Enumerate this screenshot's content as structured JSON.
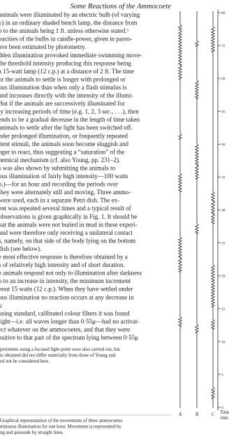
{
  "header": {
    "title": "Some Reactions of the Ammocoete"
  },
  "body": [
    "animals were illuminated by an electric bulb (of varying",
    "v) in an ordinary shaded bench lamp, the distance from",
    "b to the animals being 1 ft. unless otherwise stated.¹",
    "pacities of the bulbs in candle-power, given in paren-",
    "ave been estimated by photometry.",
    "dden illumination provoked immediate swimming move-",
    "the threshold intensity producing this response being",
    "a 15-watt lamp (12 c.p.) at a distance of 2 ft. The time",
    "or the animals to settle is longer with prolonged or",
    "ous illumination than when only a flash stimulus is",
    "and increases directly with the intensity of the illumi-",
    "But if the animals are successively illuminated for",
    "ly increasing periods of time (e.g. 1, 2, 3 sec., . . .), then",
    "ends to be a gradual decrease in the length of time taken",
    "animals to settle after the light has been switched off.",
    "nder prolonged illumination, or frequently repeated",
    "ttent stimuli, the animals soon become sluggish and",
    "nger to react, thus suggesting a “saturation” of the",
    "hemical mechanism (cf. also Young, pp. 231–2).",
    "s was also shown by submitting the animals to",
    "ous illumination of fairly high intensity—100 watts",
    "p.)—for an hour and recording the periods over",
    "they were alternately still and moving. Three ammo-",
    "were used, each in a separate Petri dish. The ex-",
    "ent was repeated several times and a typical result of",
    "observations is given graphically in Fig. 1. It should be",
    "hat the animals were not buried in mud in these experi-",
    "and were therefore only receiving a unilateral contact",
    "s, namely, on that side of the body lying on the bottom",
    "dish (see below).",
    "e most effective response is therefore obtained by a",
    "s of relatively high intensity and of short duration.",
    "e animals respond not only to illumination after darkness",
    "o to an increase in intensity, the minimum increment",
    "bout 15 watts (12 c.p.). When they have settled under",
    "ous illumination no reaction occurs at any decrease in",
    "y.",
    "using standard, calibrated colour filters it was found",
    "light—i.e. all waves longer than 0·55μ—had no activat-",
    "ect whatever on the ammocoetes, and that they were",
    "nsitive to that part of the spectrum lying between 0·55μ"
  ],
  "footnote": [
    "periments using a focused light-point were also carried out, but",
    "ts obtained did not differ materially from those of Young and",
    "ed not be considered here."
  ],
  "figure": {
    "ticks": [
      0,
      5,
      10,
      15,
      20,
      25,
      30,
      35,
      40,
      45,
      50,
      55,
      60
    ],
    "animals": [
      "A",
      "B",
      "C"
    ],
    "axis_label": [
      "Time",
      "min."
    ]
  },
  "caption": [
    "Graphical representation of the movements of three ammocoetes",
    "ntinuous illumination for one hour. Movement is represented by",
    "ng and quiesude by straight lines."
  ]
}
